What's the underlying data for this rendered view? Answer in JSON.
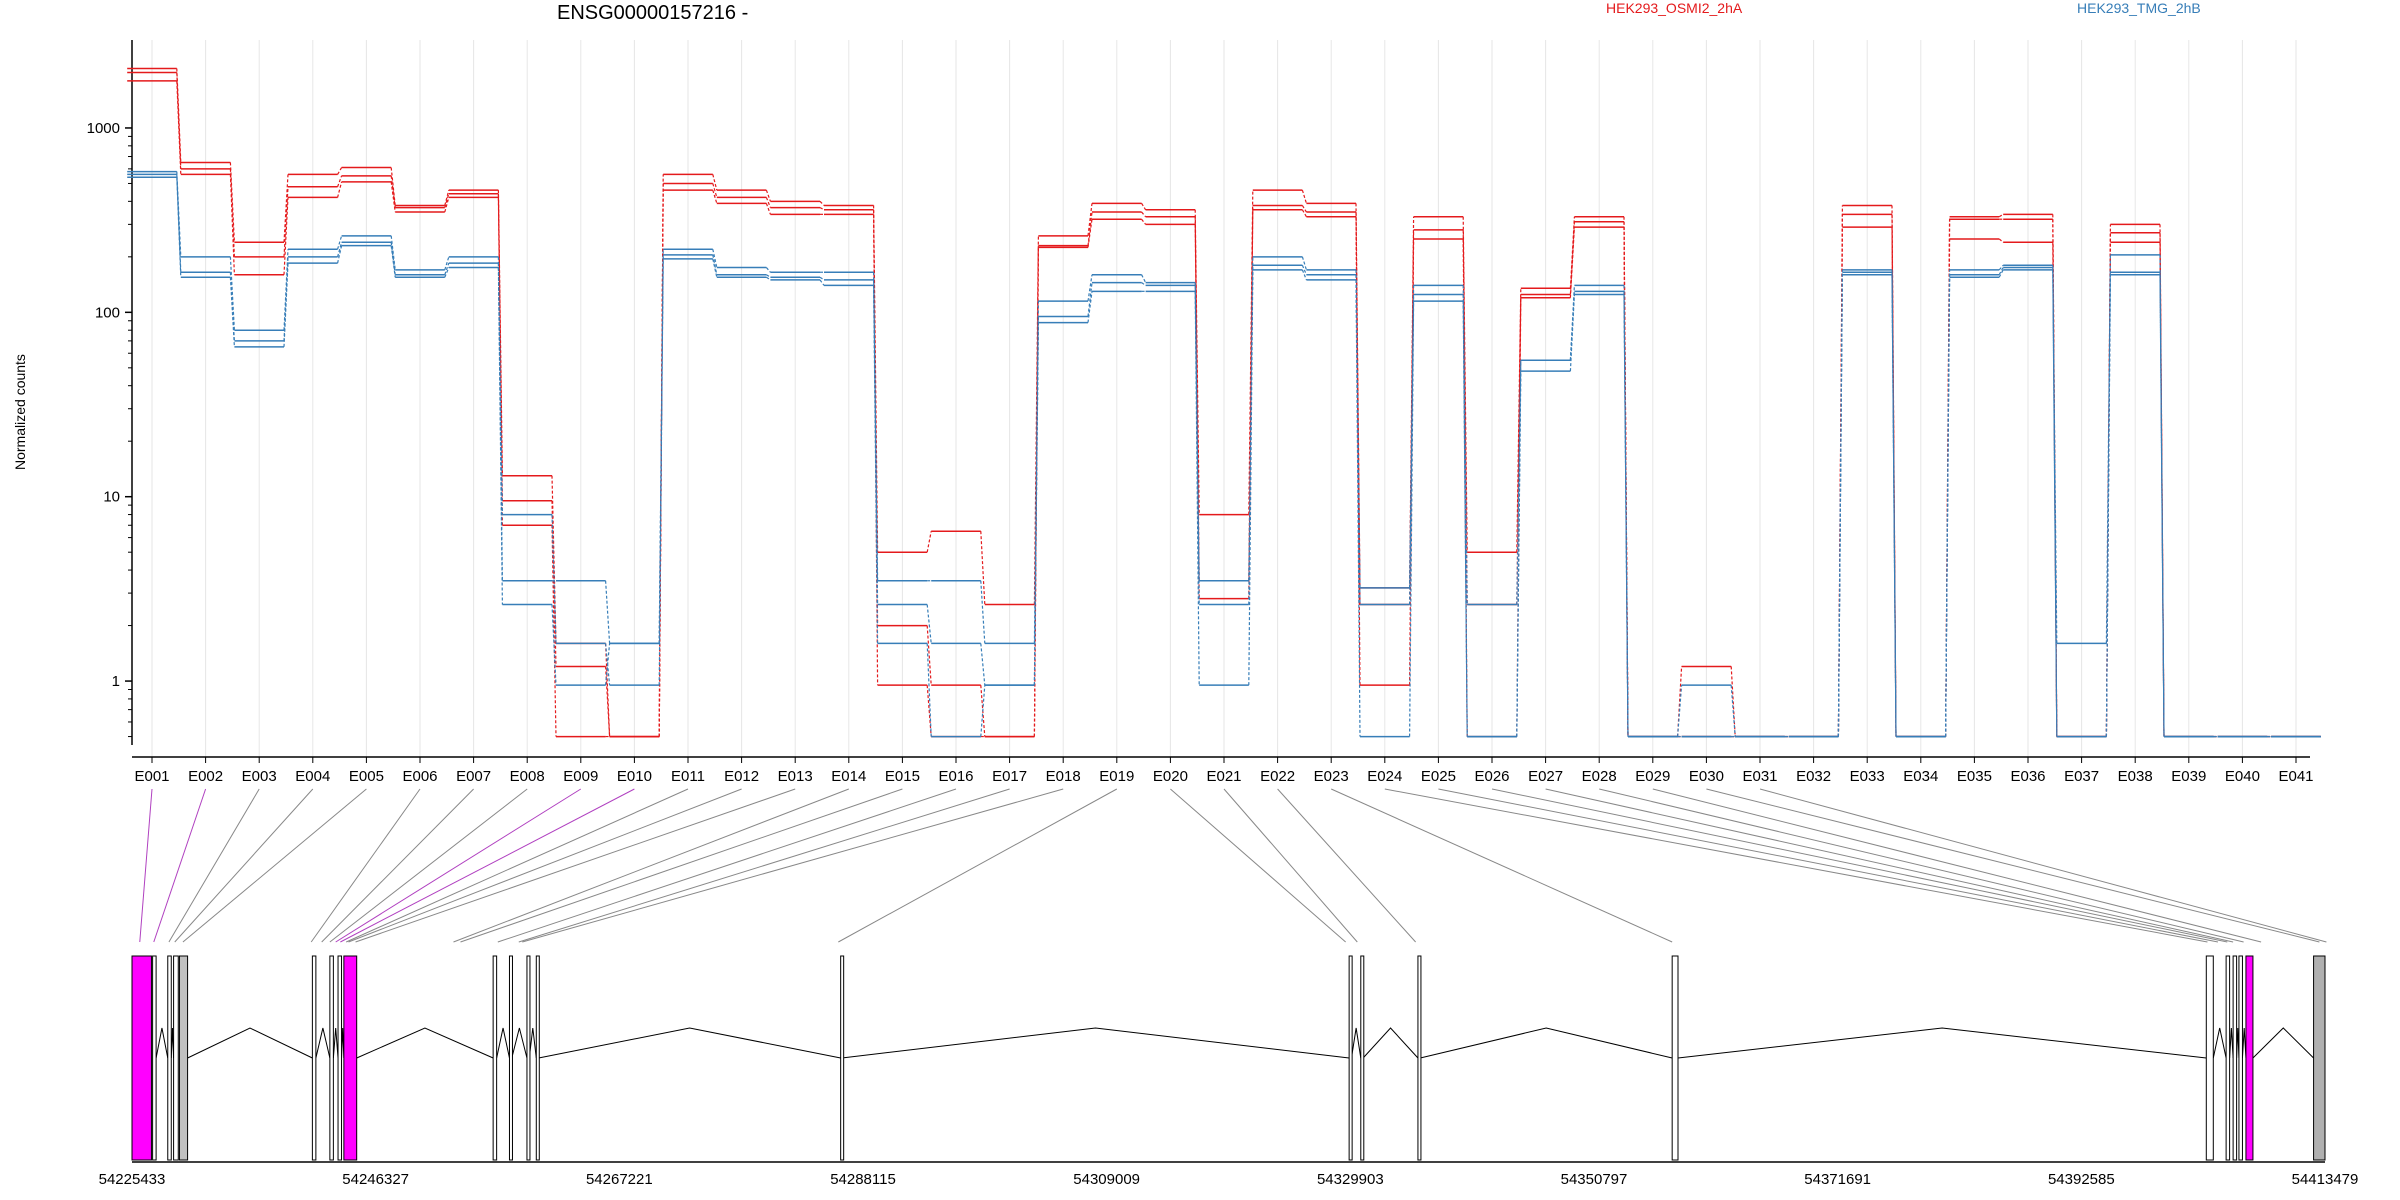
{
  "chart_data": {
    "type": "line",
    "title": "ENSG00000157216 -",
    "ylabel": "Normalized counts",
    "yscale": "log",
    "ylim": [
      0.45,
      3000
    ],
    "yticks": [
      1,
      10,
      100,
      1000
    ],
    "ytick_labels": [
      "1",
      "10",
      "100",
      "1000"
    ],
    "categories": [
      "E001",
      "E002",
      "E003",
      "E004",
      "E005",
      "E006",
      "E007",
      "E008",
      "E009",
      "E010",
      "E011",
      "E012",
      "E013",
      "E014",
      "E015",
      "E016",
      "E017",
      "E018",
      "E019",
      "E020",
      "E021",
      "E022",
      "E023",
      "E024",
      "E025",
      "E026",
      "E027",
      "E028",
      "E029",
      "E030",
      "E031",
      "E032",
      "E033",
      "E034",
      "E035",
      "E036",
      "E037",
      "E038",
      "E039",
      "E040",
      "E041"
    ],
    "legend": [
      "HEK293_OSMI2_2hA",
      "HEK293_TMG_2hB"
    ],
    "series": [
      {
        "name": "HEK293_OSMI2_2hA",
        "group": "a",
        "color": "#e41a1c",
        "values": [
          2100,
          650,
          240,
          560,
          610,
          380,
          460,
          13,
          1.6,
          0.5,
          560,
          460,
          400,
          380,
          5,
          6.5,
          2.6,
          260,
          390,
          360,
          8,
          460,
          390,
          3.2,
          330,
          5,
          135,
          330,
          0.5,
          1.2,
          0.5,
          0.5,
          380,
          0.5,
          330,
          340,
          0.5,
          300,
          0.5,
          0.5,
          0.5
        ]
      },
      {
        "name": "HEK293_OSMI2_2hA",
        "group": "a",
        "color": "#e41a1c",
        "values": [
          2000,
          600,
          200,
          480,
          550,
          370,
          440,
          9.5,
          1.2,
          0.5,
          500,
          420,
          370,
          360,
          2,
          0.95,
          0.5,
          230,
          350,
          330,
          3.5,
          380,
          350,
          0.95,
          280,
          2.6,
          125,
          310,
          0.5,
          0.5,
          0.5,
          0.5,
          340,
          0.5,
          320,
          320,
          0.5,
          270,
          0.5,
          0.5,
          0.5
        ]
      },
      {
        "name": "HEK293_OSMI2_2hA",
        "group": "a",
        "color": "#e41a1c",
        "values": [
          1800,
          560,
          160,
          420,
          510,
          350,
          420,
          7,
          0.5,
          0.5,
          460,
          390,
          340,
          340,
          0.95,
          0.5,
          0.5,
          225,
          320,
          300,
          2.8,
          360,
          330,
          2.6,
          250,
          0.5,
          120,
          290,
          0.5,
          0.5,
          0.5,
          0.5,
          290,
          0.5,
          250,
          240,
          0.5,
          240,
          0.5,
          0.5,
          0.5
        ]
      },
      {
        "name": "HEK293_TMG_2hB",
        "group": "b",
        "color": "#377eb8",
        "values": [
          580,
          200,
          80,
          220,
          260,
          170,
          200,
          3.5,
          3.5,
          1.6,
          220,
          175,
          165,
          165,
          3.5,
          3.5,
          1.6,
          115,
          160,
          145,
          3.5,
          200,
          170,
          3.2,
          140,
          2.6,
          55,
          140,
          0.5,
          0.5,
          0.5,
          0.5,
          170,
          0.5,
          170,
          180,
          1.6,
          205,
          0.5,
          0.5,
          0.5
        ]
      },
      {
        "name": "HEK293_TMG_2hB",
        "group": "b",
        "color": "#377eb8",
        "values": [
          560,
          165,
          70,
          200,
          240,
          160,
          185,
          8,
          1.6,
          0.95,
          205,
          160,
          155,
          150,
          2.6,
          1.6,
          0.95,
          95,
          145,
          140,
          2.6,
          180,
          160,
          2.6,
          125,
          0.5,
          55,
          130,
          0.5,
          0.95,
          0.5,
          0.5,
          165,
          0.5,
          160,
          175,
          0.5,
          165,
          0.5,
          0.5,
          0.5
        ]
      },
      {
        "name": "HEK293_TMG_2hB",
        "group": "b",
        "color": "#377eb8",
        "values": [
          540,
          155,
          65,
          185,
          230,
          155,
          175,
          2.6,
          0.95,
          1.6,
          195,
          155,
          150,
          140,
          1.6,
          0.5,
          0.95,
          88,
          130,
          130,
          0.95,
          170,
          150,
          0.5,
          115,
          0.5,
          48,
          125,
          0.5,
          0.5,
          0.5,
          0.5,
          160,
          0.5,
          155,
          170,
          0.5,
          160,
          0.5,
          0.5,
          0.5
        ]
      }
    ],
    "gene_model": {
      "xlim": [
        54225433,
        54413479
      ],
      "xtick_labels": [
        "54225433",
        "54246327",
        "54267221",
        "54288115",
        "54309009",
        "54329903",
        "54350797",
        "54371691",
        "54392585",
        "54413479"
      ],
      "connector_positions": [
        54226100,
        54227300,
        54228600,
        54229100,
        54229800,
        54240800,
        54241700,
        54242400,
        54242900,
        54243300,
        54243800,
        54244000,
        54244600,
        54253000,
        54253600,
        54256800,
        54258600,
        54258900,
        54286000,
        54329500,
        54330500,
        54335500,
        54357500,
        54403400,
        54404300,
        54405100,
        54405600,
        54406500,
        54408000,
        54413000,
        54413600
      ],
      "exon_blocks": [
        {
          "start": 54225433,
          "end": 54227100,
          "fill": "#ff00ff"
        },
        {
          "start": 54227200,
          "end": 54227500,
          "fill": "#ffffff"
        },
        {
          "start": 54228500,
          "end": 54228800,
          "fill": "#ffffff"
        },
        {
          "start": 54229000,
          "end": 54229400,
          "fill": "#ffffff"
        },
        {
          "start": 54229500,
          "end": 54230200,
          "fill": "#c0c0c0"
        },
        {
          "start": 54240900,
          "end": 54241200,
          "fill": "#ffffff"
        },
        {
          "start": 54242400,
          "end": 54242700,
          "fill": "#ffffff"
        },
        {
          "start": 54243100,
          "end": 54243400,
          "fill": "#ffffff"
        },
        {
          "start": 54243600,
          "end": 54244700,
          "fill": "#ff00ff"
        },
        {
          "start": 54256400,
          "end": 54256700,
          "fill": "#ffffff"
        },
        {
          "start": 54257800,
          "end": 54258000,
          "fill": "#ffffff"
        },
        {
          "start": 54259300,
          "end": 54259500,
          "fill": "#ffffff"
        },
        {
          "start": 54260100,
          "end": 54260300,
          "fill": "#ffffff"
        },
        {
          "start": 54286200,
          "end": 54286300,
          "fill": "#ffffff"
        },
        {
          "start": 54329800,
          "end": 54330000,
          "fill": "#ffffff"
        },
        {
          "start": 54330800,
          "end": 54331000,
          "fill": "#ffffff"
        },
        {
          "start": 54335700,
          "end": 54335900,
          "fill": "#ffffff"
        },
        {
          "start": 54357500,
          "end": 54358000,
          "fill": "#ffffff"
        },
        {
          "start": 54403300,
          "end": 54403900,
          "fill": "#ffffff"
        },
        {
          "start": 54405000,
          "end": 54405300,
          "fill": "#ffffff"
        },
        {
          "start": 54405600,
          "end": 54405900,
          "fill": "#ffffff"
        },
        {
          "start": 54406100,
          "end": 54406400,
          "fill": "#ffffff"
        },
        {
          "start": 54406700,
          "end": 54407300,
          "fill": "#ff00ff"
        },
        {
          "start": 54412500,
          "end": 54413479,
          "fill": "#b0b0b0"
        }
      ]
    }
  }
}
